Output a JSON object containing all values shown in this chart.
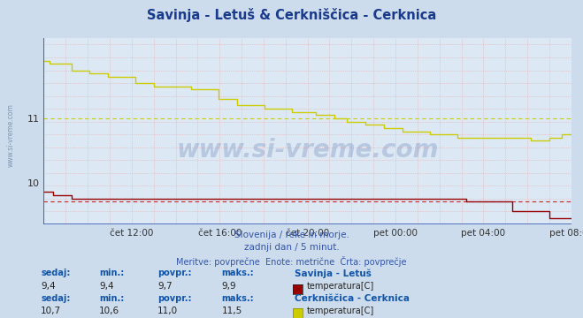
{
  "title": "Savinja - Letuš & Cerkniščica - Cerknica",
  "title_color": "#1a3a8b",
  "bg_color": "#ccdcec",
  "plot_bg_color": "#dce8f4",
  "xlabel_ticks": [
    "čet 12:00",
    "čet 16:00",
    "čet 20:00",
    "pet 00:00",
    "pet 04:00",
    "pet 08:00"
  ],
  "ylim": [
    9.35,
    12.25
  ],
  "yticks": [
    10.0,
    11.0
  ],
  "ytick_labels": [
    "10",
    "11"
  ],
  "avg_line1": 9.7,
  "avg_line2": 11.0,
  "line1_color": "#990000",
  "line2_color": "#cccc00",
  "avg_dash_color1": "#cc2222",
  "avg_dash_color2": "#cccc00",
  "watermark_text": "www.si-vreme.com",
  "watermark_color": "#1a3a8b",
  "watermark_alpha": 0.18,
  "subtitle1": "Slovenija / reke in morje.",
  "subtitle2": "zadnji dan / 5 minut.",
  "subtitle3": "Meritve: povprečne  Enote: metrične  Črta: povprečje",
  "subtitle_color": "#3355aa",
  "label_color": "#1155aa",
  "stats1": {
    "sedaj": "9,4",
    "min": "9,4",
    "povpr": "9,7",
    "maks": "9,9",
    "name": "Savinja - Letuš",
    "unit": "temperatura[C]"
  },
  "stats2": {
    "sedaj": "10,7",
    "min": "10,6",
    "povpr": "11,0",
    "maks": "11,5",
    "name": "Cerkniščica - Cerknica",
    "unit": "temperatura[C]"
  }
}
